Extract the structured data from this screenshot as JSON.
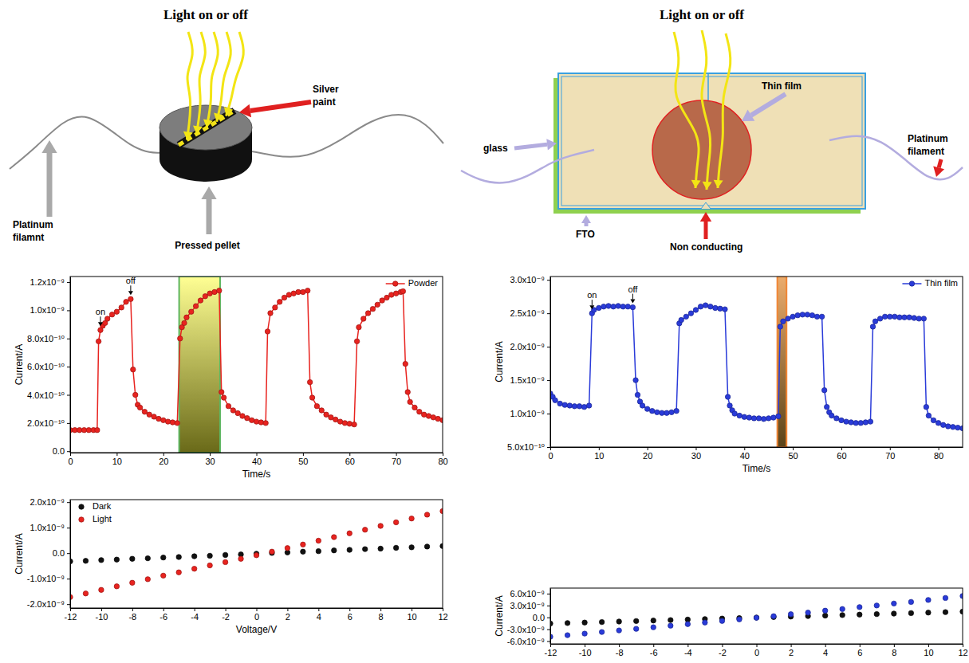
{
  "diagrams": [
    {
      "title": "Light on or off",
      "labels": [
        {
          "lines": [
            "Silver",
            "paint"
          ]
        },
        {
          "lines": [
            "Platinum",
            "filamnt"
          ]
        },
        {
          "lines": [
            "Pressed pellet"
          ]
        }
      ]
    },
    {
      "title": "Light on or off",
      "labels": [
        {
          "lines": [
            "Thin film"
          ]
        },
        {
          "lines": [
            "glass"
          ]
        },
        {
          "lines": [
            "Platinum",
            "filament"
          ]
        },
        {
          "lines": [
            "FTO"
          ]
        },
        {
          "lines": [
            "Non conducting"
          ]
        }
      ]
    }
  ],
  "chart_data": [
    {
      "type": "line",
      "x_label": "Time/s",
      "y_label": "Current/A",
      "xlim": [
        0,
        80
      ],
      "xticks": [
        0,
        10,
        20,
        30,
        40,
        50,
        60,
        70,
        80
      ],
      "ylim": [
        -1e-11,
        1.24e-09
      ],
      "yticks": [
        {
          "value": 0,
          "label": "0.0"
        },
        {
          "value": 2e-10,
          "label": "2.0x10⁻¹⁰"
        },
        {
          "value": 4e-10,
          "label": "4.0x10⁻¹⁰"
        },
        {
          "value": 6e-10,
          "label": "6.0x10⁻¹⁰"
        },
        {
          "value": 8e-10,
          "label": "8.0x10⁻¹⁰"
        },
        {
          "value": 1e-09,
          "label": "1.0x10⁻⁹"
        },
        {
          "value": 1.2e-09,
          "label": "1.2x10⁻⁹"
        }
      ],
      "legend": "top-right",
      "highlight": [
        23.4,
        32.2
      ],
      "annotations": [
        {
          "text": "on",
          "x": 6.5,
          "y": 8.6e-10
        },
        {
          "text": "off",
          "x": 13,
          "y": 1.08e-09
        }
      ],
      "x": [
        0,
        1,
        2,
        3,
        4,
        5,
        5.8,
        6.1,
        6.5,
        7,
        7.5,
        8,
        9,
        10,
        11,
        12,
        13,
        13.5,
        14,
        14.5,
        15,
        16,
        17,
        18,
        19,
        20,
        21,
        22,
        23,
        23.6,
        24,
        24.5,
        25,
        26,
        27,
        28,
        29,
        30,
        31,
        32,
        32.5,
        33,
        34,
        35,
        36,
        37,
        38,
        39,
        40,
        41,
        42,
        42.4,
        43,
        44,
        45,
        46,
        47,
        48,
        49,
        50,
        51,
        51.5,
        52,
        53,
        54,
        55,
        56,
        57,
        58,
        59,
        60,
        61,
        61.6,
        62,
        63,
        64,
        65,
        66,
        67,
        68,
        69,
        70,
        71,
        71.5,
        72,
        72.5,
        73,
        74,
        75,
        76,
        77,
        78,
        79,
        80
      ],
      "series": [
        {
          "name": "Powder",
          "color": "#e8231f",
          "marker": "circle",
          "line_style": "solid",
          "values": [
            1.5e-10,
            1.5e-10,
            1.5e-10,
            1.5e-10,
            1.5e-10,
            1.5e-10,
            1.5e-10,
            7.8e-10,
            8.6e-10,
            8.9e-10,
            9.1e-10,
            9.4e-10,
            9.7e-10,
            9.9e-10,
            1.02e-09,
            1.06e-09,
            1.08e-09,
            5.8e-10,
            4e-10,
            3.3e-10,
            3.1e-10,
            2.8e-10,
            2.6e-10,
            2.45e-10,
            2.3e-10,
            2.2e-10,
            2.1e-10,
            2.05e-10,
            2e-10,
            8e-10,
            8.8e-10,
            9.1e-10,
            9.5e-10,
            9.9e-10,
            1.03e-09,
            1.07e-09,
            1.1e-09,
            1.12e-09,
            1.13e-09,
            1.14e-09,
            4.2e-10,
            3.8e-10,
            3.2e-10,
            2.9e-10,
            2.7e-10,
            2.5e-10,
            2.35e-10,
            2.2e-10,
            2.1e-10,
            2.05e-10,
            2e-10,
            8.5e-10,
            9.8e-10,
            1.02e-09,
            1.06e-09,
            1.09e-09,
            1.11e-09,
            1.12e-09,
            1.13e-09,
            1.13e-09,
            1.14e-09,
            4.9e-10,
            3.8e-10,
            3.2e-10,
            2.9e-10,
            2.6e-10,
            2.4e-10,
            2.25e-10,
            2.1e-10,
            2e-10,
            1.95e-10,
            1.9e-10,
            7.8e-10,
            8.8e-10,
            9.4e-10,
            9.8e-10,
            1.01e-09,
            1.04e-09,
            1.07e-09,
            1.09e-09,
            1.11e-09,
            1.12e-09,
            1.13e-09,
            1.135e-09,
            6.2e-10,
            4.2e-10,
            3.5e-10,
            3.1e-10,
            2.8e-10,
            2.6e-10,
            2.5e-10,
            2.4e-10,
            2.3e-10,
            2.2e-10
          ]
        }
      ]
    },
    {
      "type": "line",
      "x_label": "Time/s",
      "y_label": "Current/A",
      "xlim": [
        0,
        85
      ],
      "xticks": [
        0,
        10,
        20,
        30,
        40,
        50,
        60,
        70,
        80
      ],
      "ylim": [
        5e-10,
        3.05e-09
      ],
      "yticks": [
        {
          "value": 5e-10,
          "label": "5.0x10⁻¹⁰"
        },
        {
          "value": 1e-09,
          "label": "1.0x10⁻⁹"
        },
        {
          "value": 1.5e-09,
          "label": "1.5x10⁻⁹"
        },
        {
          "value": 2e-09,
          "label": "2.0x10⁻⁹"
        },
        {
          "value": 2.5e-09,
          "label": "2.5x10⁻⁹"
        },
        {
          "value": 3e-09,
          "label": "3.0x10⁻⁹"
        }
      ],
      "legend": "top-right",
      "highlight": [
        46.8,
        48.7
      ],
      "annotations": [
        {
          "text": "on",
          "x": 8.6,
          "y": 2.5e-09
        },
        {
          "text": "off",
          "x": 17,
          "y": 2.59e-09
        }
      ],
      "x": [
        0,
        0.5,
        1,
        2,
        3,
        4,
        5,
        6,
        7,
        8,
        8.6,
        9,
        10,
        11,
        12,
        13,
        14,
        15,
        16,
        17,
        17.6,
        18,
        18.5,
        19,
        20,
        21,
        22,
        23,
        24,
        25,
        26,
        26.6,
        27,
        28,
        29,
        30,
        31,
        32,
        33,
        34,
        35,
        36,
        36.6,
        37,
        37.5,
        38,
        39,
        40,
        41,
        42,
        43,
        44,
        45,
        46,
        47,
        47.4,
        48,
        49,
        50,
        51,
        52,
        53,
        54,
        55,
        56,
        56.5,
        57,
        57.5,
        58,
        59,
        60,
        61,
        62,
        63,
        64,
        65,
        66,
        66.5,
        67,
        68,
        69,
        70,
        71,
        72,
        73,
        74,
        75,
        76,
        77,
        77.5,
        78,
        79,
        80,
        81,
        82,
        83,
        84,
        85
      ],
      "series": [
        {
          "name": "Thin film",
          "color": "#2a3bd9",
          "marker": "circle",
          "line_style": "solid",
          "values": [
            1.3e-09,
            1.25e-09,
            1.2e-09,
            1.15e-09,
            1.13e-09,
            1.12e-09,
            1.11e-09,
            1.11e-09,
            1.1e-09,
            1.12e-09,
            2.5e-09,
            2.55e-09,
            2.58e-09,
            2.6e-09,
            2.61e-09,
            2.6e-09,
            2.61e-09,
            2.6e-09,
            2.6e-09,
            2.59e-09,
            1.5e-09,
            1.28e-09,
            1.18e-09,
            1.12e-09,
            1.07e-09,
            1.04e-09,
            1.02e-09,
            1.01e-09,
            1.01e-09,
            1.02e-09,
            1.04e-09,
            2.35e-09,
            2.4e-09,
            2.45e-09,
            2.5e-09,
            2.55e-09,
            2.6e-09,
            2.62e-09,
            2.6e-09,
            2.58e-09,
            2.57e-09,
            2.56e-09,
            1.25e-09,
            1.12e-09,
            1.05e-09,
            1e-09,
            9.7e-10,
            9.5e-10,
            9.4e-10,
            9.3e-10,
            9.3e-10,
            9.2e-10,
            9.3e-10,
            9.4e-10,
            9.6e-10,
            2.3e-09,
            2.38e-09,
            2.42e-09,
            2.45e-09,
            2.47e-09,
            2.48e-09,
            2.48e-09,
            2.47e-09,
            2.45e-09,
            2.45e-09,
            1.35e-09,
            1.1e-09,
            1.02e-09,
            9.7e-10,
            9.3e-10,
            9e-10,
            8.8e-10,
            8.7e-10,
            8.6e-10,
            8.6e-10,
            8.7e-10,
            8.8e-10,
            2.3e-09,
            2.38e-09,
            2.42e-09,
            2.45e-09,
            2.45e-09,
            2.45e-09,
            2.44e-09,
            2.44e-09,
            2.44e-09,
            2.43e-09,
            2.42e-09,
            2.42e-09,
            1.1e-09,
            9.7e-10,
            9e-10,
            8.6e-10,
            8.3e-10,
            8.1e-10,
            8e-10,
            7.9e-10,
            7.8e-10
          ]
        }
      ]
    },
    {
      "type": "scatter",
      "x_label": "Voltage/V",
      "y_label": "Current/A",
      "xlim": [
        -12,
        12
      ],
      "xticks": [
        -12,
        -10,
        -8,
        -6,
        -4,
        -2,
        0,
        2,
        4,
        6,
        8,
        10,
        12
      ],
      "ylim": [
        -2.15e-09,
        2.1e-09
      ],
      "yticks": [
        {
          "value": -2e-09,
          "label": "-2.0x10⁻⁹"
        },
        {
          "value": -1e-09,
          "label": "-1.0x10⁻⁹"
        },
        {
          "value": 0,
          "label": "0.0"
        },
        {
          "value": 1e-09,
          "label": "1.0x10⁻⁹"
        },
        {
          "value": 2e-09,
          "label": "2.0x10⁻⁹"
        }
      ],
      "legend": "top-left",
      "x": [
        -12,
        -11,
        -10,
        -9,
        -8,
        -7,
        -6,
        -5,
        -4,
        -3,
        -2,
        -1,
        0,
        1,
        2,
        3,
        4,
        5,
        6,
        7,
        8,
        9,
        10,
        11,
        12
      ],
      "series": [
        {
          "name": "Dark",
          "color": "#111111",
          "marker": "circle",
          "values": [
            -3.2e-10,
            -3e-10,
            -2.7e-10,
            -2.5e-10,
            -2.2e-10,
            -2e-10,
            -1.7e-10,
            -1.5e-10,
            -1.2e-10,
            -1e-10,
            -7e-11,
            -5e-11,
            -2e-11,
            1e-11,
            3e-11,
            6e-11,
            8e-11,
            1.1e-10,
            1.3e-10,
            1.6e-10,
            1.8e-10,
            2.1e-10,
            2.3e-10,
            2.6e-10,
            2.8e-10
          ]
        },
        {
          "name": "Light",
          "color": "#e8231f",
          "marker": "circle",
          "values": [
            -1.72e-09,
            -1.58e-09,
            -1.44e-09,
            -1.3e-09,
            -1.16e-09,
            -1.02e-09,
            -8.8e-10,
            -7.5e-10,
            -6.1e-10,
            -4.8e-10,
            -3.5e-10,
            -2.2e-10,
            -8e-11,
            6e-11,
            2e-10,
            3.4e-10,
            4.9e-10,
            6.3e-10,
            7.8e-10,
            9.2e-10,
            1.07e-09,
            1.21e-09,
            1.36e-09,
            1.51e-09,
            1.65e-09
          ]
        }
      ]
    },
    {
      "type": "scatter",
      "y_label": "Current/A",
      "xlim": [
        -12,
        12
      ],
      "xticks": [
        -12,
        -10,
        -8,
        -6,
        -4,
        -2,
        0,
        2,
        4,
        6,
        8,
        10,
        12
      ],
      "ylim": [
        -6.7e-09,
        7.4e-09
      ],
      "yticks": [
        {
          "value": -6e-09,
          "label": "-6.0x10⁻⁹"
        },
        {
          "value": -3e-09,
          "label": "-3.0x10⁻⁹"
        },
        {
          "value": 0,
          "label": "0.0"
        },
        {
          "value": 3e-09,
          "label": "3.0x10⁻⁹"
        },
        {
          "value": 6e-09,
          "label": "6.0x10⁻⁹"
        }
      ],
      "x": [
        -12,
        -11,
        -10,
        -9,
        -8,
        -7,
        -6,
        -5,
        -4,
        -3,
        -2,
        -1,
        0,
        1,
        2,
        3,
        4,
        5,
        6,
        7,
        8,
        9,
        10,
        11,
        12
      ],
      "series": [
        {
          "color": "#111111",
          "marker": "circle",
          "values": [
            -1.55e-09,
            -1.43e-09,
            -1.3e-09,
            -1.18e-09,
            -1.05e-09,
            -9.3e-10,
            -8e-10,
            -6.8e-10,
            -5.5e-10,
            -4.3e-10,
            -3e-10,
            -1.8e-10,
            -5e-11,
            8e-11,
            2e-10,
            3.3e-10,
            4.5e-10,
            5.8e-10,
            7e-10,
            8.3e-10,
            9.5e-10,
            1.08e-09,
            1.2e-09,
            1.33e-09,
            1.45e-09
          ]
        },
        {
          "color": "#2a3bd9",
          "marker": "circle",
          "values": [
            -4.9e-09,
            -4.5e-09,
            -4.1e-09,
            -3.7e-09,
            -3.3e-09,
            -2.9e-09,
            -2.5e-09,
            -2.1e-09,
            -1.7e-09,
            -1.3e-09,
            -9e-10,
            -5e-10,
            -1e-10,
            3e-10,
            8e-10,
            1.2e-09,
            1.7e-09,
            2.1e-09,
            2.6e-09,
            3e-09,
            3.5e-09,
            3.9e-09,
            4.4e-09,
            4.9e-09,
            5.4e-09
          ]
        }
      ]
    }
  ]
}
